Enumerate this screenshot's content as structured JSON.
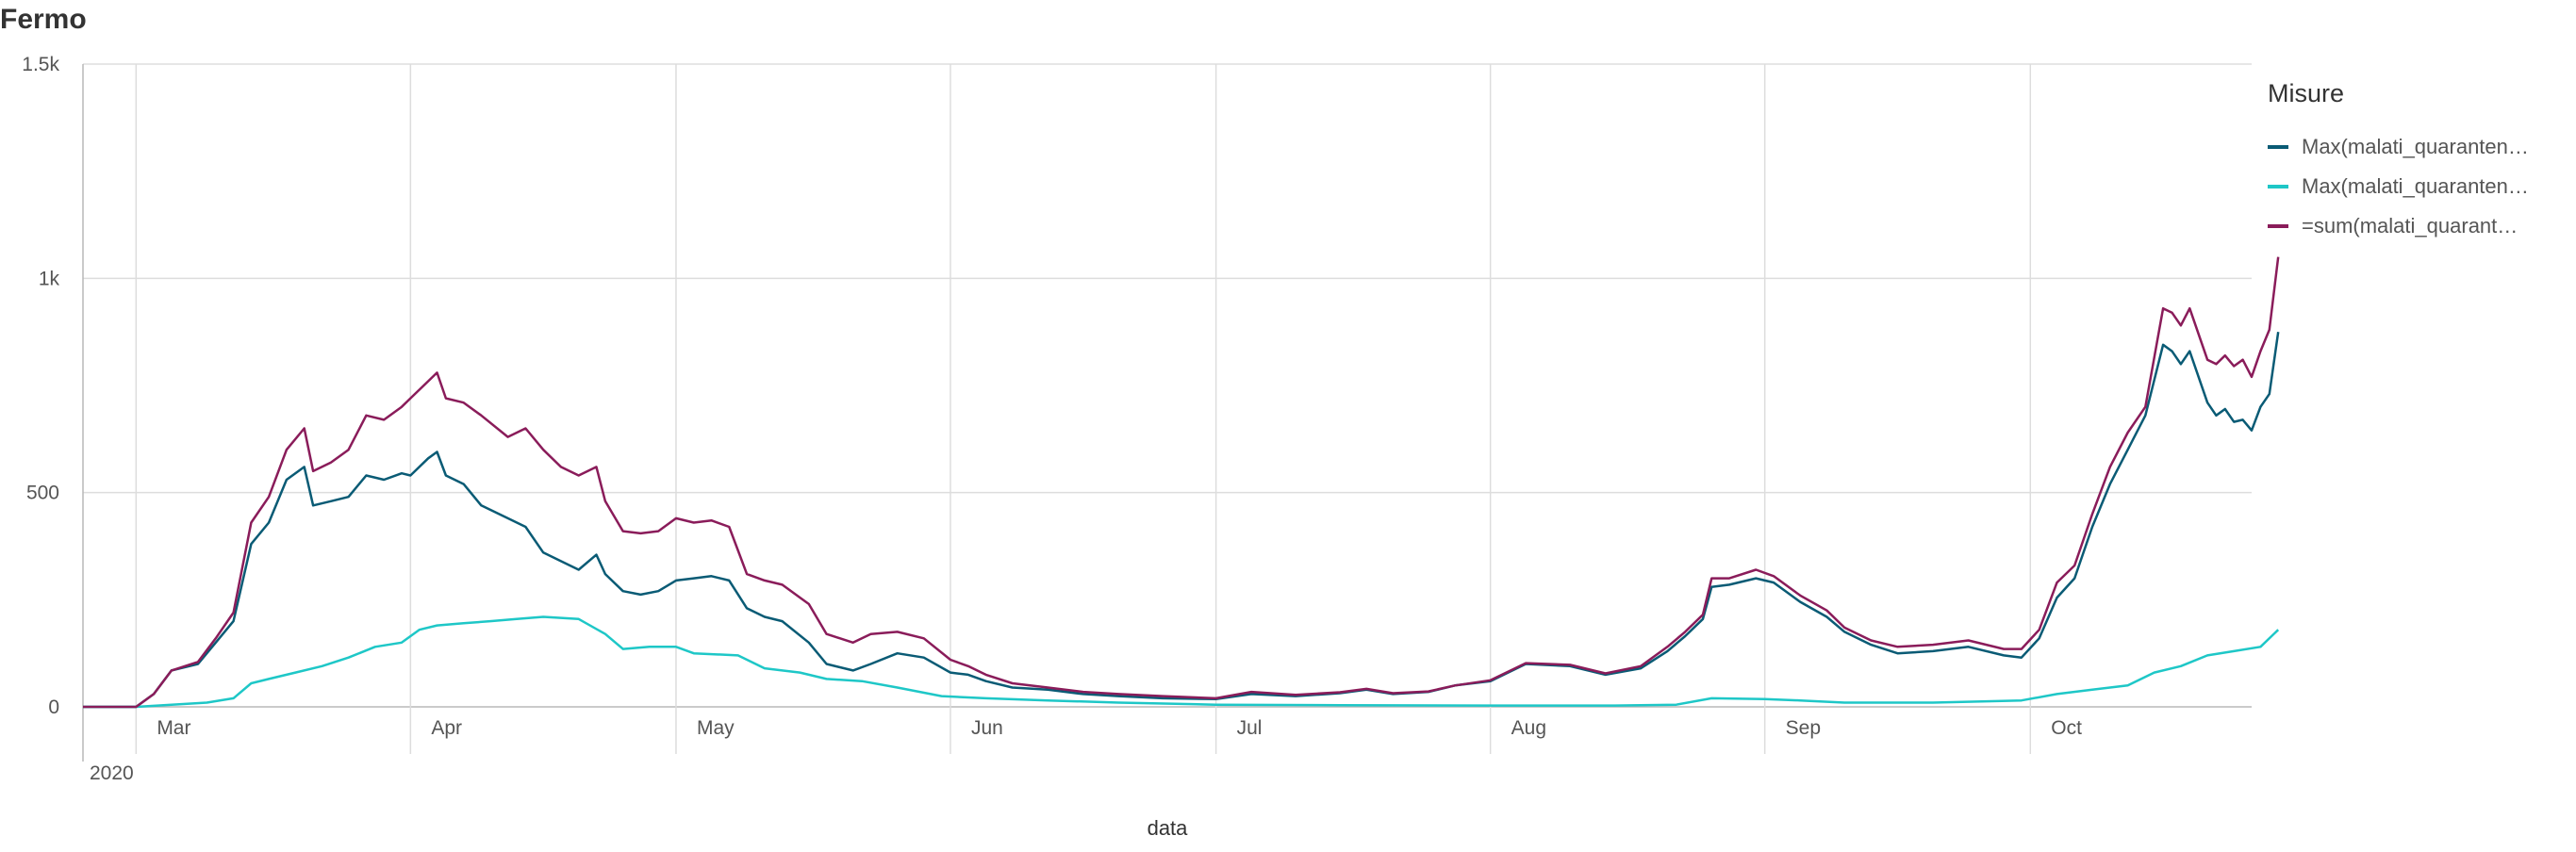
{
  "chart_data": {
    "type": "line",
    "title": "Fermo",
    "xlabel": "data",
    "ylabel": "",
    "year_label": "2020",
    "x_start": "2020-02-24",
    "x_end": "2020-10-26",
    "ylim": [
      0,
      1500
    ],
    "yticks": [
      {
        "value": 0,
        "label": "0"
      },
      {
        "value": 500,
        "label": "500"
      },
      {
        "value": 1000,
        "label": "1k"
      },
      {
        "value": 1500,
        "label": "1.5k"
      }
    ],
    "xticks": [
      {
        "date": "2020-03-01",
        "label": "Mar"
      },
      {
        "date": "2020-04-01",
        "label": "Apr"
      },
      {
        "date": "2020-05-01",
        "label": "May"
      },
      {
        "date": "2020-06-01",
        "label": "Jun"
      },
      {
        "date": "2020-07-01",
        "label": "Jul"
      },
      {
        "date": "2020-08-01",
        "label": "Aug"
      },
      {
        "date": "2020-09-01",
        "label": "Sep"
      },
      {
        "date": "2020-10-01",
        "label": "Oct"
      }
    ],
    "legend_title": "Misure",
    "legend_position": "right",
    "grid": true,
    "series": [
      {
        "name": "Max(malati_quaranten…",
        "color": "#0a5b75",
        "points": [
          [
            "2020-02-24",
            0
          ],
          [
            "2020-03-01",
            0
          ],
          [
            "2020-03-03",
            30
          ],
          [
            "2020-03-05",
            85
          ],
          [
            "2020-03-08",
            100
          ],
          [
            "2020-03-10",
            150
          ],
          [
            "2020-03-12",
            200
          ],
          [
            "2020-03-14",
            380
          ],
          [
            "2020-03-16",
            430
          ],
          [
            "2020-03-18",
            530
          ],
          [
            "2020-03-20",
            560
          ],
          [
            "2020-03-21",
            470
          ],
          [
            "2020-03-23",
            480
          ],
          [
            "2020-03-25",
            490
          ],
          [
            "2020-03-27",
            540
          ],
          [
            "2020-03-29",
            530
          ],
          [
            "2020-03-31",
            545
          ],
          [
            "2020-04-01",
            540
          ],
          [
            "2020-04-03",
            580
          ],
          [
            "2020-04-04",
            595
          ],
          [
            "2020-04-05",
            540
          ],
          [
            "2020-04-07",
            520
          ],
          [
            "2020-04-09",
            470
          ],
          [
            "2020-04-12",
            440
          ],
          [
            "2020-04-14",
            420
          ],
          [
            "2020-04-16",
            360
          ],
          [
            "2020-04-18",
            340
          ],
          [
            "2020-04-20",
            320
          ],
          [
            "2020-04-22",
            355
          ],
          [
            "2020-04-23",
            310
          ],
          [
            "2020-04-25",
            270
          ],
          [
            "2020-04-27",
            262
          ],
          [
            "2020-04-29",
            270
          ],
          [
            "2020-05-01",
            295
          ],
          [
            "2020-05-03",
            300
          ],
          [
            "2020-05-05",
            305
          ],
          [
            "2020-05-07",
            295
          ],
          [
            "2020-05-09",
            230
          ],
          [
            "2020-05-11",
            210
          ],
          [
            "2020-05-13",
            200
          ],
          [
            "2020-05-16",
            150
          ],
          [
            "2020-05-18",
            100
          ],
          [
            "2020-05-21",
            85
          ],
          [
            "2020-05-23",
            100
          ],
          [
            "2020-05-26",
            125
          ],
          [
            "2020-05-29",
            115
          ],
          [
            "2020-06-01",
            80
          ],
          [
            "2020-06-03",
            75
          ],
          [
            "2020-06-05",
            60
          ],
          [
            "2020-06-08",
            45
          ],
          [
            "2020-06-12",
            40
          ],
          [
            "2020-06-16",
            30
          ],
          [
            "2020-06-20",
            25
          ],
          [
            "2020-06-25",
            20
          ],
          [
            "2020-07-01",
            18
          ],
          [
            "2020-07-05",
            30
          ],
          [
            "2020-07-10",
            25
          ],
          [
            "2020-07-15",
            32
          ],
          [
            "2020-07-18",
            40
          ],
          [
            "2020-07-21",
            30
          ],
          [
            "2020-07-25",
            35
          ],
          [
            "2020-07-28",
            50
          ],
          [
            "2020-08-01",
            60
          ],
          [
            "2020-08-05",
            100
          ],
          [
            "2020-08-10",
            95
          ],
          [
            "2020-08-14",
            75
          ],
          [
            "2020-08-18",
            90
          ],
          [
            "2020-08-21",
            130
          ],
          [
            "2020-08-23",
            165
          ],
          [
            "2020-08-25",
            205
          ],
          [
            "2020-08-26",
            280
          ],
          [
            "2020-08-28",
            285
          ],
          [
            "2020-08-31",
            300
          ],
          [
            "2020-09-02",
            290
          ],
          [
            "2020-09-05",
            245
          ],
          [
            "2020-09-08",
            210
          ],
          [
            "2020-09-10",
            175
          ],
          [
            "2020-09-13",
            145
          ],
          [
            "2020-09-16",
            125
          ],
          [
            "2020-09-20",
            130
          ],
          [
            "2020-09-24",
            140
          ],
          [
            "2020-09-28",
            120
          ],
          [
            "2020-09-30",
            115
          ],
          [
            "2020-10-02",
            160
          ],
          [
            "2020-10-04",
            255
          ],
          [
            "2020-10-06",
            300
          ],
          [
            "2020-10-08",
            420
          ],
          [
            "2020-10-10",
            520
          ],
          [
            "2020-10-12",
            600
          ],
          [
            "2020-10-14",
            680
          ],
          [
            "2020-10-16",
            845
          ],
          [
            "2020-10-17",
            830
          ],
          [
            "2020-10-18",
            800
          ],
          [
            "2020-10-19",
            830
          ],
          [
            "2020-10-21",
            710
          ],
          [
            "2020-10-22",
            680
          ],
          [
            "2020-10-23",
            695
          ],
          [
            "2020-10-24",
            665
          ],
          [
            "2020-10-25",
            670
          ],
          [
            "2020-10-26",
            645
          ],
          [
            "2020-10-27",
            700
          ],
          [
            "2020-10-28",
            730
          ],
          [
            "2020-10-29",
            875
          ]
        ]
      },
      {
        "name": "Max(malati_quaranten…",
        "color": "#1ec7c7",
        "points": [
          [
            "2020-02-24",
            0
          ],
          [
            "2020-03-01",
            0
          ],
          [
            "2020-03-05",
            5
          ],
          [
            "2020-03-09",
            10
          ],
          [
            "2020-03-12",
            20
          ],
          [
            "2020-03-14",
            55
          ],
          [
            "2020-03-16",
            65
          ],
          [
            "2020-03-19",
            80
          ],
          [
            "2020-03-22",
            95
          ],
          [
            "2020-03-25",
            115
          ],
          [
            "2020-03-28",
            140
          ],
          [
            "2020-03-31",
            150
          ],
          [
            "2020-04-02",
            180
          ],
          [
            "2020-04-04",
            190
          ],
          [
            "2020-04-07",
            195
          ],
          [
            "2020-04-10",
            200
          ],
          [
            "2020-04-13",
            205
          ],
          [
            "2020-04-16",
            210
          ],
          [
            "2020-04-20",
            205
          ],
          [
            "2020-04-23",
            170
          ],
          [
            "2020-04-25",
            135
          ],
          [
            "2020-04-28",
            140
          ],
          [
            "2020-05-01",
            140
          ],
          [
            "2020-05-03",
            125
          ],
          [
            "2020-05-08",
            120
          ],
          [
            "2020-05-11",
            90
          ],
          [
            "2020-05-15",
            80
          ],
          [
            "2020-05-18",
            65
          ],
          [
            "2020-05-22",
            60
          ],
          [
            "2020-05-26",
            45
          ],
          [
            "2020-05-31",
            25
          ],
          [
            "2020-06-05",
            20
          ],
          [
            "2020-06-12",
            15
          ],
          [
            "2020-06-20",
            10
          ],
          [
            "2020-07-01",
            5
          ],
          [
            "2020-07-15",
            4
          ],
          [
            "2020-08-01",
            3
          ],
          [
            "2020-08-15",
            3
          ],
          [
            "2020-08-22",
            5
          ],
          [
            "2020-08-26",
            20
          ],
          [
            "2020-09-01",
            18
          ],
          [
            "2020-09-05",
            15
          ],
          [
            "2020-09-10",
            10
          ],
          [
            "2020-09-20",
            10
          ],
          [
            "2020-09-30",
            15
          ],
          [
            "2020-10-04",
            30
          ],
          [
            "2020-10-08",
            40
          ],
          [
            "2020-10-12",
            50
          ],
          [
            "2020-10-15",
            80
          ],
          [
            "2020-10-18",
            95
          ],
          [
            "2020-10-21",
            120
          ],
          [
            "2020-10-24",
            130
          ],
          [
            "2020-10-27",
            140
          ],
          [
            "2020-10-29",
            180
          ]
        ]
      },
      {
        "name": "=sum(malati_quarant…",
        "color": "#8a1c5a",
        "points": [
          [
            "2020-02-24",
            0
          ],
          [
            "2020-03-01",
            0
          ],
          [
            "2020-03-03",
            30
          ],
          [
            "2020-03-05",
            85
          ],
          [
            "2020-03-08",
            105
          ],
          [
            "2020-03-10",
            160
          ],
          [
            "2020-03-12",
            220
          ],
          [
            "2020-03-14",
            430
          ],
          [
            "2020-03-16",
            490
          ],
          [
            "2020-03-18",
            600
          ],
          [
            "2020-03-20",
            650
          ],
          [
            "2020-03-21",
            550
          ],
          [
            "2020-03-23",
            570
          ],
          [
            "2020-03-25",
            600
          ],
          [
            "2020-03-27",
            680
          ],
          [
            "2020-03-29",
            670
          ],
          [
            "2020-03-31",
            700
          ],
          [
            "2020-04-01",
            720
          ],
          [
            "2020-04-03",
            760
          ],
          [
            "2020-04-04",
            780
          ],
          [
            "2020-04-05",
            720
          ],
          [
            "2020-04-07",
            710
          ],
          [
            "2020-04-09",
            680
          ],
          [
            "2020-04-12",
            630
          ],
          [
            "2020-04-14",
            650
          ],
          [
            "2020-04-16",
            600
          ],
          [
            "2020-04-18",
            560
          ],
          [
            "2020-04-20",
            540
          ],
          [
            "2020-04-22",
            560
          ],
          [
            "2020-04-23",
            480
          ],
          [
            "2020-04-25",
            410
          ],
          [
            "2020-04-27",
            405
          ],
          [
            "2020-04-29",
            410
          ],
          [
            "2020-05-01",
            440
          ],
          [
            "2020-05-03",
            430
          ],
          [
            "2020-05-05",
            435
          ],
          [
            "2020-05-07",
            420
          ],
          [
            "2020-05-09",
            310
          ],
          [
            "2020-05-11",
            295
          ],
          [
            "2020-05-13",
            285
          ],
          [
            "2020-05-16",
            240
          ],
          [
            "2020-05-18",
            170
          ],
          [
            "2020-05-21",
            150
          ],
          [
            "2020-05-23",
            170
          ],
          [
            "2020-05-26",
            175
          ],
          [
            "2020-05-29",
            160
          ],
          [
            "2020-06-01",
            110
          ],
          [
            "2020-06-03",
            95
          ],
          [
            "2020-06-05",
            75
          ],
          [
            "2020-06-08",
            55
          ],
          [
            "2020-06-12",
            45
          ],
          [
            "2020-06-16",
            35
          ],
          [
            "2020-06-20",
            30
          ],
          [
            "2020-06-25",
            25
          ],
          [
            "2020-07-01",
            20
          ],
          [
            "2020-07-05",
            35
          ],
          [
            "2020-07-10",
            28
          ],
          [
            "2020-07-15",
            34
          ],
          [
            "2020-07-18",
            42
          ],
          [
            "2020-07-21",
            32
          ],
          [
            "2020-07-25",
            36
          ],
          [
            "2020-07-28",
            50
          ],
          [
            "2020-08-01",
            62
          ],
          [
            "2020-08-05",
            102
          ],
          [
            "2020-08-10",
            98
          ],
          [
            "2020-08-14",
            78
          ],
          [
            "2020-08-18",
            95
          ],
          [
            "2020-08-21",
            140
          ],
          [
            "2020-08-23",
            175
          ],
          [
            "2020-08-25",
            215
          ],
          [
            "2020-08-26",
            300
          ],
          [
            "2020-08-28",
            300
          ],
          [
            "2020-08-31",
            320
          ],
          [
            "2020-09-02",
            305
          ],
          [
            "2020-09-05",
            260
          ],
          [
            "2020-09-08",
            225
          ],
          [
            "2020-09-10",
            185
          ],
          [
            "2020-09-13",
            155
          ],
          [
            "2020-09-16",
            140
          ],
          [
            "2020-09-20",
            145
          ],
          [
            "2020-09-24",
            155
          ],
          [
            "2020-09-28",
            135
          ],
          [
            "2020-09-30",
            135
          ],
          [
            "2020-10-02",
            180
          ],
          [
            "2020-10-04",
            290
          ],
          [
            "2020-10-06",
            330
          ],
          [
            "2020-10-08",
            450
          ],
          [
            "2020-10-10",
            560
          ],
          [
            "2020-10-12",
            640
          ],
          [
            "2020-10-14",
            700
          ],
          [
            "2020-10-16",
            930
          ],
          [
            "2020-10-17",
            920
          ],
          [
            "2020-10-18",
            890
          ],
          [
            "2020-10-19",
            930
          ],
          [
            "2020-10-21",
            810
          ],
          [
            "2020-10-22",
            800
          ],
          [
            "2020-10-23",
            820
          ],
          [
            "2020-10-24",
            795
          ],
          [
            "2020-10-25",
            810
          ],
          [
            "2020-10-26",
            770
          ],
          [
            "2020-10-27",
            830
          ],
          [
            "2020-10-28",
            880
          ],
          [
            "2020-10-29",
            1050
          ]
        ]
      }
    ]
  }
}
